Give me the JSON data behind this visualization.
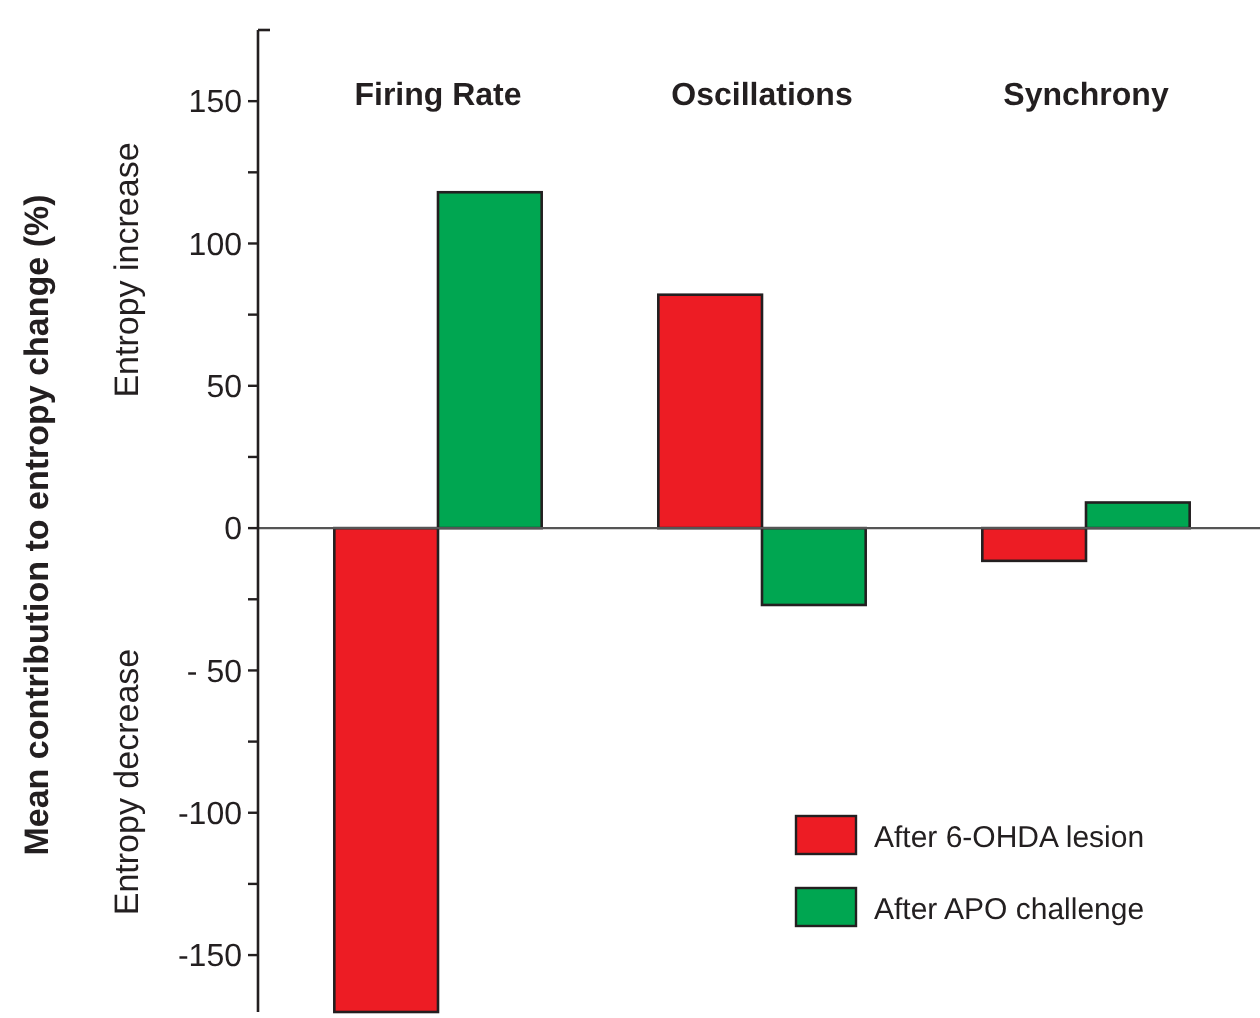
{
  "chart_data": {
    "type": "bar",
    "ylabel": "Mean contribution to entropy change  (%)",
    "categories": [
      "Firing Rate",
      "Oscillations",
      "Synchrony"
    ],
    "series": [
      {
        "name": "After 6-OHDA lesion",
        "color": "#ed1c24",
        "values": [
          -170,
          82,
          -11.5
        ]
      },
      {
        "name": "After APO challenge",
        "color": "#00a651",
        "values": [
          118,
          -27,
          9
        ]
      }
    ],
    "ylim": [
      -170,
      175
    ],
    "yticks": [
      -150,
      {
        "value": -125,
        "label": null
      },
      {
        "value": -100,
        "label": "-100"
      },
      {
        "value": -75,
        "label": null
      },
      {
        "value": -50,
        "label": "- 50"
      },
      {
        "value": -25,
        "label": null
      },
      0,
      {
        "value": 25,
        "label": null
      },
      50,
      {
        "value": 75,
        "label": null
      },
      100,
      {
        "value": 125,
        "label": null
      },
      150
    ],
    "annotations": [
      "Entropy increase",
      "Entropy decrease"
    ],
    "legend": "bottom right"
  }
}
